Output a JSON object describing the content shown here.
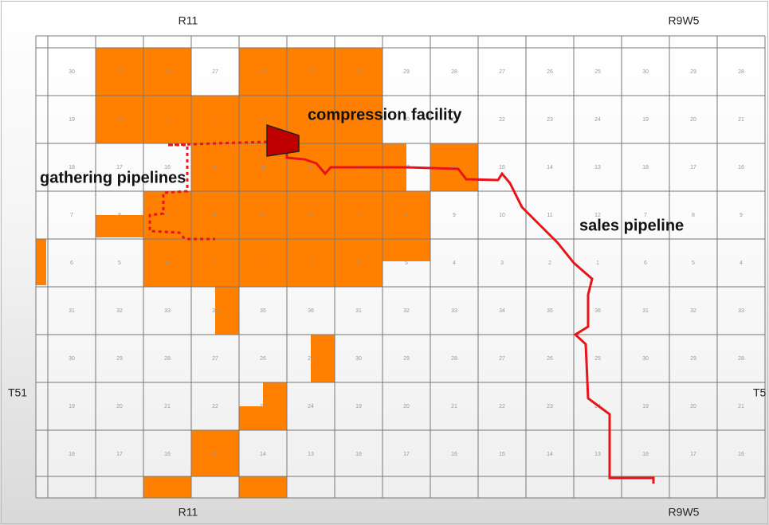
{
  "labels": {
    "top_left": "R11",
    "top_right": "R9W5",
    "bottom_left": "R11",
    "bottom_right": "R9W5",
    "left": "T51",
    "right": "T5"
  },
  "annotations": {
    "compression": "compression facility",
    "gathering": "gathering pipelines",
    "sales": "sales pipeline"
  },
  "sections": [
    [
      "30",
      "29",
      "28",
      "27",
      "26",
      "25",
      "30",
      "29",
      "28",
      "27",
      "26",
      "25",
      "30",
      "29",
      "28"
    ],
    [
      "19",
      "20",
      "21",
      "22",
      "23",
      "24",
      "19",
      "20",
      "21",
      "22",
      "23",
      "24",
      "19",
      "20",
      "21"
    ],
    [
      "18",
      "17",
      "16",
      "15",
      "14",
      "13",
      "18",
      "17",
      "16",
      "15",
      "14",
      "13",
      "18",
      "17",
      "16"
    ],
    [
      "7",
      "8",
      "9",
      "10",
      "11",
      "12",
      "7",
      "8",
      "9",
      "10",
      "11",
      "12",
      "7",
      "8",
      "9"
    ],
    [
      "6",
      "5",
      "4",
      "3",
      "2",
      "1",
      "6",
      "5",
      "4",
      "3",
      "2",
      "1",
      "6",
      "5",
      "4"
    ],
    [
      "31",
      "32",
      "33",
      "34",
      "35",
      "36",
      "31",
      "32",
      "33",
      "34",
      "35",
      "36",
      "31",
      "32",
      "33"
    ],
    [
      "30",
      "29",
      "28",
      "27",
      "26",
      "25",
      "30",
      "29",
      "28",
      "27",
      "26",
      "25",
      "30",
      "29",
      "28"
    ],
    [
      "19",
      "20",
      "21",
      "22",
      "23",
      "24",
      "19",
      "20",
      "21",
      "22",
      "23",
      "24",
      "19",
      "20",
      "21"
    ],
    [
      "18",
      "17",
      "16",
      "15",
      "14",
      "13",
      "18",
      "17",
      "16",
      "15",
      "14",
      "13",
      "18",
      "17",
      "16"
    ]
  ]
}
